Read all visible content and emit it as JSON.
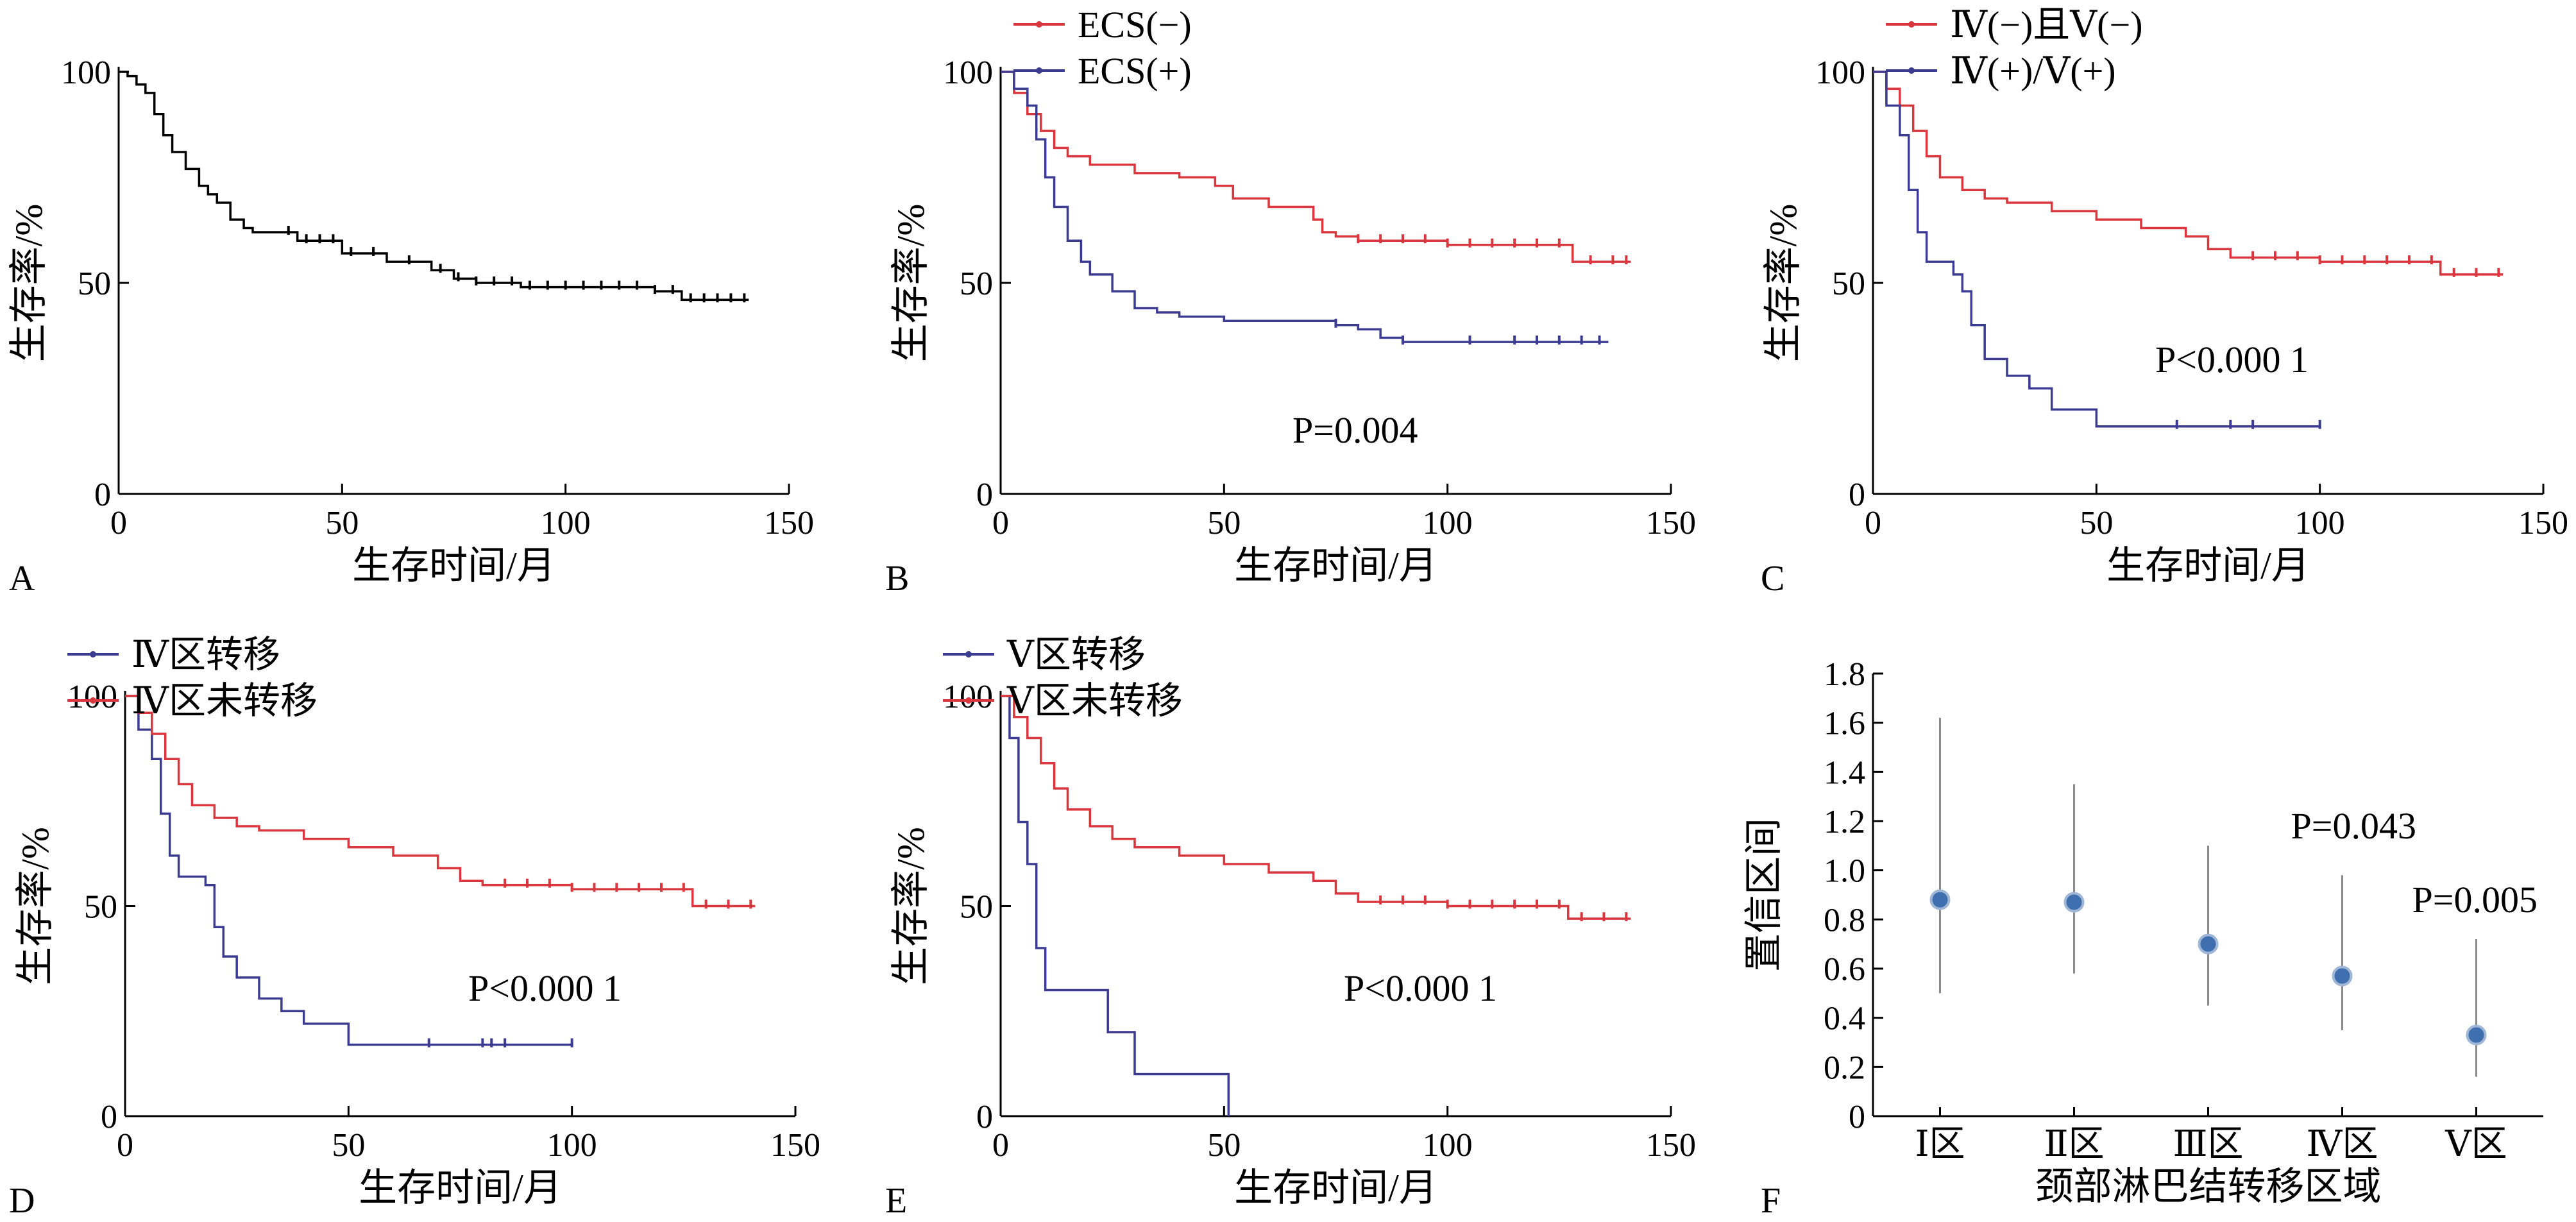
{
  "colors": {
    "black": "#000000",
    "red": "#d9363e",
    "blue": "#3b3b92",
    "gray": "#8a8a8a",
    "marker": "#3f6fae"
  },
  "chart_data": [
    {
      "panel": "A",
      "type": "line",
      "xlabel": "生存时间/月",
      "ylabel": "生存率/%",
      "xlim": [
        0,
        150
      ],
      "ylim": [
        0,
        100
      ],
      "xticks": [
        "0",
        "50",
        "100",
        "150"
      ],
      "yticks": [
        "0",
        "50",
        "100"
      ],
      "annotation": "",
      "series": [
        {
          "name": "",
          "color": "#000000",
          "x": [
            0,
            2,
            4,
            6,
            8,
            10,
            12,
            15,
            18,
            20,
            22,
            25,
            28,
            30,
            40,
            50,
            60,
            70,
            75,
            80,
            90,
            100,
            110,
            120,
            125,
            126,
            130,
            141
          ],
          "y": [
            100,
            99,
            97,
            95,
            90,
            85,
            81,
            77,
            73,
            71,
            69,
            65,
            63,
            62,
            60,
            57,
            55,
            53,
            51,
            50,
            49,
            49,
            49,
            48,
            48,
            46,
            46,
            46
          ],
          "censored_x": [
            38,
            42,
            45,
            48,
            52,
            57,
            65,
            72,
            76,
            80,
            84,
            88,
            92,
            96,
            100,
            104,
            108,
            112,
            116,
            120,
            124,
            128,
            131,
            134,
            137,
            140
          ]
        }
      ]
    },
    {
      "panel": "B",
      "type": "line",
      "xlabel": "生存时间/月",
      "ylabel": "生存率/%",
      "xlim": [
        0,
        150
      ],
      "ylim": [
        0,
        100
      ],
      "xticks": [
        "0",
        "50",
        "100",
        "150"
      ],
      "yticks": [
        "0",
        "50",
        "100"
      ],
      "annotation": "P=0.004",
      "legend": "top-left",
      "series": [
        {
          "name": "ECS(−)",
          "color": "#d9363e",
          "x": [
            0,
            3,
            6,
            9,
            12,
            15,
            20,
            30,
            40,
            48,
            52,
            60,
            70,
            72,
            75,
            80,
            100,
            128,
            141
          ],
          "y": [
            100,
            95,
            90,
            86,
            82,
            80,
            78,
            76,
            75,
            73,
            70,
            68,
            65,
            62,
            61,
            60,
            59,
            55,
            55
          ],
          "censored_x": [
            80,
            85,
            90,
            95,
            100,
            105,
            110,
            115,
            120,
            125,
            132,
            137,
            140
          ]
        },
        {
          "name": "ECS(+)",
          "color": "#3b3b92",
          "x": [
            0,
            3,
            6,
            8,
            10,
            12,
            15,
            18,
            20,
            25,
            30,
            35,
            40,
            50,
            60,
            70,
            75,
            80,
            85,
            90,
            136
          ],
          "y": [
            100,
            96,
            92,
            84,
            75,
            68,
            60,
            55,
            52,
            48,
            44,
            43,
            42,
            41,
            41,
            41,
            40,
            39,
            37,
            36,
            36
          ],
          "censored_x": [
            75,
            90,
            105,
            115,
            120,
            125,
            130,
            134
          ]
        }
      ]
    },
    {
      "panel": "C",
      "type": "line",
      "xlabel": "生存时间/月",
      "ylabel": "生存率/%",
      "xlim": [
        0,
        150
      ],
      "ylim": [
        0,
        100
      ],
      "xticks": [
        "0",
        "50",
        "100",
        "150"
      ],
      "yticks": [
        "0",
        "50",
        "100"
      ],
      "annotation": "P<0.000 1",
      "legend": "top-left",
      "series": [
        {
          "name": "Ⅳ(−)且Ⅴ(−)",
          "color": "#d9363e",
          "x": [
            0,
            3,
            6,
            9,
            12,
            15,
            20,
            25,
            30,
            40,
            50,
            60,
            70,
            75,
            80,
            100,
            127,
            141
          ],
          "y": [
            100,
            96,
            92,
            86,
            80,
            75,
            72,
            70,
            69,
            67,
            65,
            63,
            61,
            58,
            56,
            55,
            52,
            52
          ],
          "censored_x": [
            85,
            90,
            95,
            100,
            105,
            110,
            115,
            120,
            125,
            130,
            135,
            140
          ]
        },
        {
          "name": "Ⅳ(+)/Ⅴ(+)",
          "color": "#3b3b92",
          "x": [
            0,
            3,
            6,
            8,
            10,
            12,
            15,
            18,
            20,
            22,
            25,
            30,
            35,
            40,
            50,
            100
          ],
          "y": [
            100,
            92,
            85,
            72,
            62,
            55,
            55,
            52,
            48,
            40,
            32,
            28,
            25,
            20,
            16,
            16
          ],
          "censored_x": [
            68,
            80,
            85,
            100
          ]
        }
      ]
    },
    {
      "panel": "D",
      "type": "line",
      "xlabel": "生存时间/月",
      "ylabel": "生存率/%",
      "xlim": [
        0,
        150
      ],
      "ylim": [
        0,
        100
      ],
      "xticks": [
        "0",
        "50",
        "100",
        "150"
      ],
      "yticks": [
        "0",
        "50",
        "100"
      ],
      "annotation": "P<0.000 1",
      "legend": "top-left",
      "series": [
        {
          "name": "Ⅳ区转移",
          "color": "#3b3b92",
          "x": [
            0,
            3,
            6,
            8,
            10,
            12,
            15,
            18,
            20,
            22,
            25,
            30,
            35,
            40,
            50,
            100
          ],
          "y": [
            100,
            92,
            85,
            72,
            62,
            57,
            57,
            55,
            45,
            38,
            33,
            28,
            25,
            22,
            17,
            17
          ],
          "censored_x": [
            68,
            80,
            82,
            85,
            100
          ]
        },
        {
          "name": "Ⅳ区未转移",
          "color": "#d9363e",
          "x": [
            0,
            3,
            6,
            9,
            12,
            15,
            20,
            25,
            30,
            40,
            50,
            60,
            70,
            75,
            80,
            100,
            127,
            141
          ],
          "y": [
            100,
            96,
            91,
            85,
            79,
            74,
            71,
            69,
            68,
            66,
            64,
            62,
            59,
            56,
            55,
            54,
            50,
            50
          ],
          "censored_x": [
            85,
            90,
            95,
            100,
            105,
            110,
            115,
            120,
            125,
            130,
            135,
            140
          ]
        }
      ]
    },
    {
      "panel": "E",
      "type": "line",
      "xlabel": "生存时间/月",
      "ylabel": "生存率/%",
      "xlim": [
        0,
        150
      ],
      "ylim": [
        0,
        100
      ],
      "xticks": [
        "0",
        "50",
        "100",
        "150"
      ],
      "yticks": [
        "0",
        "50",
        "100"
      ],
      "annotation": "P<0.000 1",
      "legend": "top-left",
      "series": [
        {
          "name": "Ⅴ区转移",
          "color": "#3b3b92",
          "x": [
            0,
            2,
            4,
            6,
            8,
            10,
            12,
            20,
            24,
            30,
            50,
            51
          ],
          "y": [
            100,
            90,
            70,
            60,
            40,
            30,
            30,
            30,
            20,
            10,
            10,
            0
          ],
          "censored_x": []
        },
        {
          "name": "Ⅴ区未转移",
          "color": "#d9363e",
          "x": [
            0,
            3,
            6,
            9,
            12,
            15,
            20,
            25,
            30,
            40,
            50,
            60,
            70,
            75,
            80,
            100,
            127,
            141
          ],
          "y": [
            100,
            95,
            90,
            84,
            78,
            73,
            69,
            66,
            64,
            62,
            60,
            58,
            56,
            53,
            51,
            50,
            47,
            47
          ],
          "censored_x": [
            85,
            90,
            95,
            100,
            105,
            110,
            115,
            120,
            125,
            130,
            135,
            140
          ]
        }
      ]
    },
    {
      "panel": "F",
      "type": "scatter",
      "xlabel": "颈部淋巴结转移区域",
      "ylabel": "置信区间",
      "ylim": [
        0,
        1.8
      ],
      "yticks": [
        "0",
        "0.2",
        "0.4",
        "0.6",
        "0.8",
        "1.0",
        "1.2",
        "1.4",
        "1.6",
        "1.8"
      ],
      "categories": [
        "Ⅰ区",
        "Ⅱ区",
        "Ⅲ区",
        "Ⅳ区",
        "Ⅴ区"
      ],
      "points": [
        {
          "category": "Ⅰ区",
          "estimate": 0.88,
          "lower": 0.5,
          "upper": 1.62,
          "p": ""
        },
        {
          "category": "Ⅱ区",
          "estimate": 0.87,
          "lower": 0.58,
          "upper": 1.35,
          "p": ""
        },
        {
          "category": "Ⅲ区",
          "estimate": 0.7,
          "lower": 0.45,
          "upper": 1.1,
          "p": ""
        },
        {
          "category": "Ⅳ区",
          "estimate": 0.57,
          "lower": 0.35,
          "upper": 0.98,
          "p": "P=0.043"
        },
        {
          "category": "Ⅴ区",
          "estimate": 0.33,
          "lower": 0.16,
          "upper": 0.72,
          "p": "P=0.005"
        }
      ]
    }
  ]
}
